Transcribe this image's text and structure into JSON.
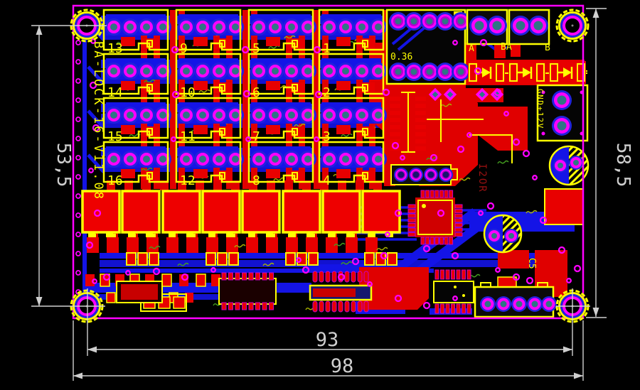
{
  "dimensions": {
    "left": "53,5",
    "right": "58,5",
    "bottom_inner": "93",
    "bottom_outer": "98"
  },
  "silkscreen": {
    "board_name": "BA-LOCK-16-V11.08",
    "value_label": "0.36",
    "terminal_a": "A",
    "terminal_ba": "BA",
    "terminal_b": "B",
    "cap_ref": "C5",
    "power_label": "GND+12V",
    "ref_vertical": "I2OR"
  },
  "connector_labels": {
    "col1": [
      "13",
      "14",
      "15",
      "16"
    ],
    "col2": [
      "9",
      "10",
      "11",
      "12"
    ],
    "col3": [
      "5",
      "6",
      "7",
      "8"
    ],
    "col4": [
      "1",
      "2",
      "3",
      "4"
    ]
  },
  "colors": {
    "board_outline": "#ff00ff",
    "copper_top": "#e80000",
    "copper_bottom": "#1414e6",
    "silkscreen": "#ffff00",
    "dimension": "#cfcfcf",
    "pad_center": "#2e7585"
  }
}
